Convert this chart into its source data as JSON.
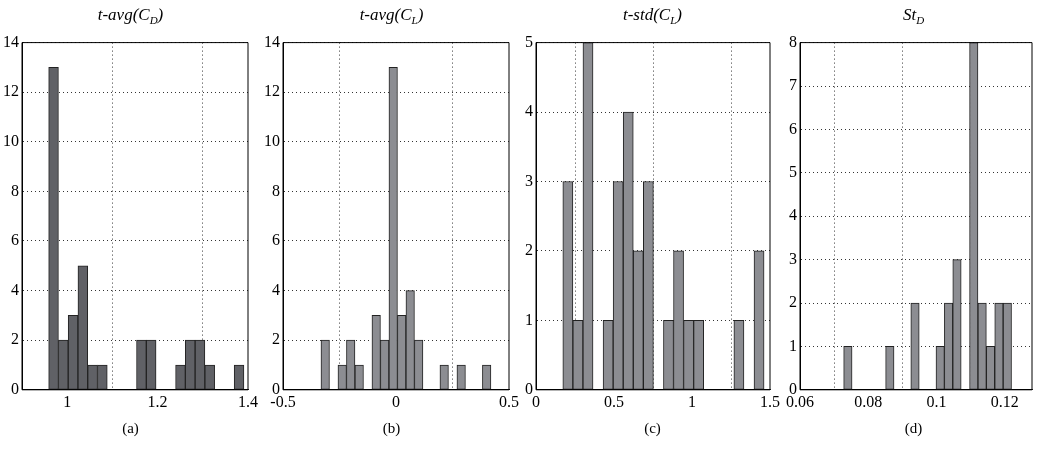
{
  "chart_data": [
    {
      "type": "histogram",
      "title": "t-avg(C$_{D}$)",
      "xlabel": "(a)",
      "color": "#606166",
      "grid": true,
      "bins": [
        0.959,
        0.9806,
        1.0022,
        1.0238,
        1.0454,
        1.067,
        1.0886,
        1.1102,
        1.1318,
        1.1534,
        1.175,
        1.1966,
        1.2182,
        1.2398,
        1.2614,
        1.283,
        1.3046,
        1.3262,
        1.3478,
        1.3694,
        1.391
      ],
      "values": [
        13,
        2,
        3,
        5,
        1,
        1,
        0,
        0,
        0,
        2,
        2,
        0,
        0,
        1,
        2,
        2,
        1,
        0,
        0,
        1
      ],
      "xlim": [
        0.9,
        1.4
      ],
      "xticks": [
        1,
        1.2,
        1.4
      ],
      "ylim": [
        0,
        14
      ],
      "yticks": [
        0,
        2,
        4,
        6,
        8,
        10,
        12,
        14
      ]
    },
    {
      "type": "histogram",
      "title": "t-avg(C$_{L}$)",
      "xlabel": "(b)",
      "color": "#8c8d92",
      "grid": true,
      "bins": [
        -0.332,
        -0.2944,
        -0.2568,
        -0.2192,
        -0.1816,
        -0.144,
        -0.1064,
        -0.0688,
        -0.0312,
        0.0064,
        0.044,
        0.0816,
        0.1192,
        0.1568,
        0.1944,
        0.232,
        0.2696,
        0.3072,
        0.3448,
        0.3824,
        0.42
      ],
      "values": [
        2,
        0,
        1,
        2,
        1,
        0,
        3,
        2,
        13,
        3,
        4,
        2,
        0,
        0,
        1,
        0,
        1,
        0,
        0,
        1
      ],
      "xlim": [
        -0.5,
        0.5
      ],
      "xticks": [
        -0.5,
        0,
        0.5
      ],
      "ylim": [
        0,
        14
      ],
      "yticks": [
        0,
        2,
        4,
        6,
        8,
        10,
        12,
        14
      ]
    },
    {
      "type": "histogram",
      "title": "t-std(C$_{L}$)",
      "xlabel": "(c)",
      "color": "#8c8d92",
      "grid": true,
      "bins": [
        0.172,
        0.2365,
        0.301,
        0.3655,
        0.43,
        0.4945,
        0.559,
        0.6235,
        0.688,
        0.7525,
        0.817,
        0.8815,
        0.946,
        1.0105,
        1.075,
        1.1395,
        1.204,
        1.2685,
        1.333,
        1.3975,
        1.462
      ],
      "values": [
        3,
        1,
        5,
        0,
        1,
        3,
        4,
        2,
        3,
        0,
        1,
        2,
        1,
        1,
        0,
        0,
        0,
        1,
        0,
        2
      ],
      "xlim": [
        0,
        1.5
      ],
      "xticks": [
        0,
        0.5,
        1,
        1.5
      ],
      "ylim": [
        0,
        5
      ],
      "yticks": [
        0,
        1,
        2,
        3,
        4,
        5
      ]
    },
    {
      "type": "histogram",
      "title": "St$_{D}$",
      "xlabel": "(d)",
      "color": "#8c8d92",
      "grid": true,
      "bins": [
        0.0728,
        0.07526,
        0.07772,
        0.08018,
        0.08264,
        0.0851,
        0.08756,
        0.09002,
        0.09248,
        0.09494,
        0.0974,
        0.09986,
        0.10232,
        0.10478,
        0.10724,
        0.1097,
        0.11216,
        0.11462,
        0.11708,
        0.11954,
        0.122
      ],
      "values": [
        1,
        0,
        0,
        0,
        0,
        1,
        0,
        0,
        2,
        0,
        0,
        1,
        2,
        3,
        0,
        8,
        2,
        1,
        2,
        2
      ],
      "xlim": [
        0.06,
        0.128
      ],
      "xticks": [
        0.06,
        0.08,
        0.1,
        0.12
      ],
      "ylim": [
        0,
        8
      ],
      "yticks": [
        0,
        1,
        2,
        3,
        4,
        5,
        6,
        7,
        8
      ]
    }
  ]
}
